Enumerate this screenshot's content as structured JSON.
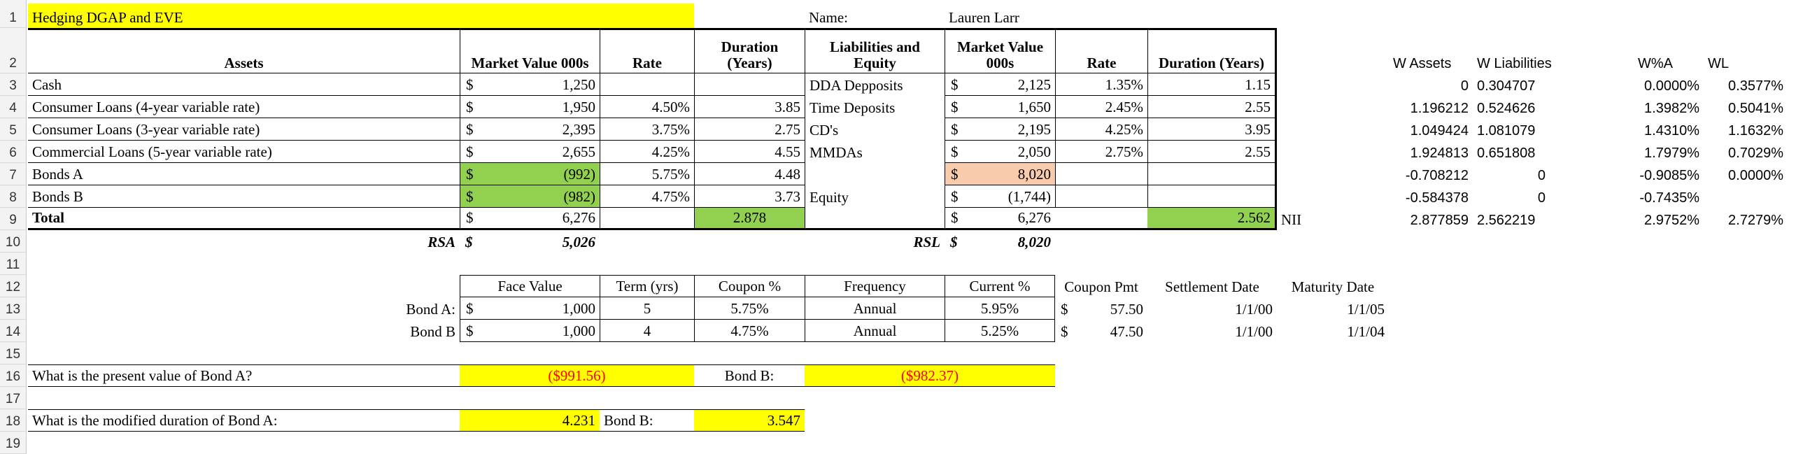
{
  "rows": [
    "1",
    "2",
    "3",
    "4",
    "5",
    "6",
    "7",
    "8",
    "9",
    "10",
    "11",
    "12",
    "13",
    "14",
    "15",
    "16",
    "17",
    "18",
    "19"
  ],
  "title": "Hedging DGAP and EVE",
  "name_label": "Name:",
  "name_value": "Lauren Larr",
  "headers": {
    "assets": "Assets",
    "mv": "Market Value 000s",
    "rate": "Rate",
    "duration": "Duration (Years)",
    "liab_equity": "Liabilities and Equity",
    "liab_mv": "Market Value 000s",
    "liab_rate": "Rate",
    "liab_duration": "Duration (Years)",
    "w_assets": "W Assets",
    "w_liab": "W Liabilities",
    "wpa": "W%A",
    "wl": "WL"
  },
  "currency": "$",
  "assets": [
    {
      "name": "Cash",
      "mv": "1,250",
      "rate": "",
      "dur": ""
    },
    {
      "name": "Consumer Loans (4-year variable rate)",
      "mv": "1,950",
      "rate": "4.50%",
      "dur": "3.85"
    },
    {
      "name": "Consumer Loans (3-year variable rate)",
      "mv": "2,395",
      "rate": "3.75%",
      "dur": "2.75"
    },
    {
      "name": "Commercial Loans (5-year variable rate)",
      "mv": "2,655",
      "rate": "4.25%",
      "dur": "4.55"
    },
    {
      "name": "Bonds A",
      "mv": "(992)",
      "rate": "5.75%",
      "dur": "4.48"
    },
    {
      "name": "Bonds B",
      "mv": "(982)",
      "rate": "4.75%",
      "dur": "3.73"
    }
  ],
  "liabilities": [
    {
      "name": "DDA Depposits",
      "mv": "2,125",
      "rate": "1.35%",
      "dur": "1.15"
    },
    {
      "name": "Time Deposits",
      "mv": "1,650",
      "rate": "2.45%",
      "dur": "2.55"
    },
    {
      "name": "CD's",
      "mv": "2,195",
      "rate": "4.25%",
      "dur": "3.95"
    },
    {
      "name": "MMDAs",
      "mv": "2,050",
      "rate": "2.75%",
      "dur": "2.55"
    },
    {
      "name": "",
      "mv": "8,020",
      "rate": "",
      "dur": ""
    },
    {
      "name": "Equity",
      "mv": "(1,744)",
      "rate": "",
      "dur": ""
    }
  ],
  "weights": [
    {
      "wa": "0",
      "wl": "0.304707",
      "wpa": "0.0000%",
      "wlp": "0.3577%"
    },
    {
      "wa": "1.196212",
      "wl": "0.524626",
      "wpa": "1.3982%",
      "wlp": "0.5041%"
    },
    {
      "wa": "1.049424",
      "wl": "1.081079",
      "wpa": "1.4310%",
      "wlp": "1.1632%"
    },
    {
      "wa": "1.924813",
      "wl": "0.651808",
      "wpa": "1.7979%",
      "wlp": "0.7029%"
    },
    {
      "wa": "-0.708212",
      "wl": "0",
      "wpa": "-0.9085%",
      "wlp": "0.0000%"
    },
    {
      "wa": "-0.584378",
      "wl": "0",
      "wpa": "-0.7435%",
      "wlp": ""
    },
    {
      "wa": "2.877859",
      "wl": "2.562219",
      "wpa": "2.9752%",
      "wlp": "2.7279%"
    }
  ],
  "total": {
    "label": "Total",
    "mv": "6,276",
    "dur": "2.878",
    "liab_mv": "6,276",
    "liab_dur": "2.562",
    "nii": "NII"
  },
  "rsa": {
    "label": "RSA",
    "value": "5,026"
  },
  "rsl": {
    "label": "RSL",
    "value": "8,020"
  },
  "bond_table": {
    "headers": [
      "Face Value",
      "Term (yrs)",
      "Coupon %",
      "Frequency",
      "Current %",
      "Coupon Pmt",
      "Settlement Date",
      "Maturity Date"
    ],
    "rows": [
      {
        "label": "Bond A:",
        "face": "1,000",
        "term": "5",
        "coupon": "5.75%",
        "freq": "Annual",
        "current": "5.95%",
        "pmt": "57.50",
        "settle": "1/1/00",
        "maturity": "1/1/05"
      },
      {
        "label": "Bond B",
        "face": "1,000",
        "term": "4",
        "coupon": "4.75%",
        "freq": "Annual",
        "current": "5.25%",
        "pmt": "47.50",
        "settle": "1/1/00",
        "maturity": "1/1/04"
      }
    ]
  },
  "q1": {
    "label": "What is the present value of Bond A?",
    "a": "($991.56)",
    "b_label": "Bond B:",
    "b": "($982.37)"
  },
  "q2": {
    "label": "What is the modified duration of Bond A:",
    "a": "4.231",
    "b_label": "Bond B:",
    "b": "3.547"
  }
}
